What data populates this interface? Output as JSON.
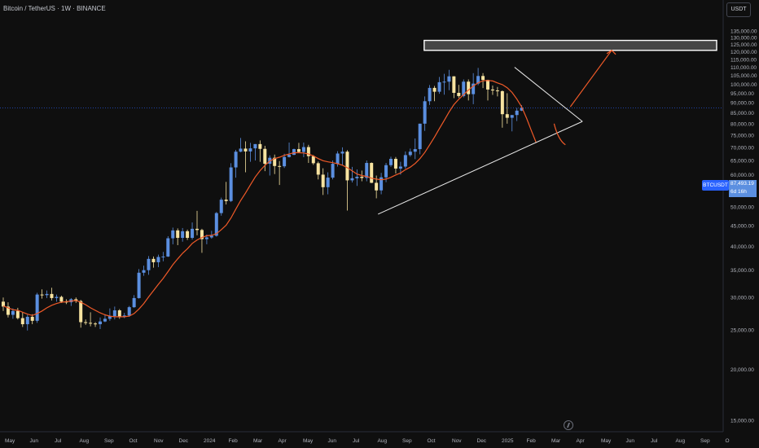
{
  "header": {
    "symbol_title": "Bitcoin / TetherUS · 1W · BINANCE"
  },
  "price_scale": {
    "currency": "USDT"
  },
  "last_price": {
    "symbol": "BTCUSDT",
    "value": "87,493.19",
    "countdown": "6d 16h"
  },
  "chart_data": {
    "type": "candlestick",
    "y_tick_labels": [
      "15,000.00",
      "20,000.00",
      "25,000.00",
      "30,000.00",
      "35,000.00",
      "40,000.00",
      "45,000.00",
      "50,000.00",
      "55,000.00",
      "60,000.00",
      "65,000.00",
      "70,000.00",
      "75,000.00",
      "80,000.00",
      "85,000.00",
      "90,000.00",
      "95,000.00",
      "100,000.00",
      "105,000.00",
      "110,000.00",
      "115,000.00",
      "120,000.00",
      "125,000.00",
      "130,000.00",
      "135,000.00"
    ],
    "y_ticks": [
      15000,
      20000,
      25000,
      30000,
      35000,
      40000,
      45000,
      50000,
      55000,
      60000,
      65000,
      70000,
      75000,
      80000,
      85000,
      90000,
      95000,
      100000,
      105000,
      110000,
      115000,
      120000,
      125000,
      130000,
      135000
    ],
    "x_tick_labels": [
      "May",
      "Jun",
      "Jul",
      "Aug",
      "Sep",
      "Oct",
      "Nov",
      "Dec",
      "2024",
      "Feb",
      "Mar",
      "Apr",
      "May",
      "Jun",
      "Jul",
      "Aug",
      "Sep",
      "Oct",
      "Nov",
      "Dec",
      "2025",
      "Feb",
      "Mar",
      "Apr",
      "May",
      "Jun",
      "Jul",
      "Aug",
      "Sep",
      "O"
    ],
    "up_color": "#5b8fe0",
    "down_color": "#f7e3a0",
    "ma_color": "#f05a28",
    "annotation_color": "#e8e8e8",
    "candles": [
      {
        "o": 29300,
        "h": 30000,
        "l": 27800,
        "c": 28500
      },
      {
        "o": 28500,
        "h": 29200,
        "l": 26800,
        "c": 27200
      },
      {
        "o": 27200,
        "h": 28200,
        "l": 26600,
        "c": 27800
      },
      {
        "o": 27800,
        "h": 28300,
        "l": 26500,
        "c": 26700
      },
      {
        "o": 26700,
        "h": 27600,
        "l": 25400,
        "c": 25800
      },
      {
        "o": 25800,
        "h": 27200,
        "l": 24900,
        "c": 26900
      },
      {
        "o": 26900,
        "h": 27300,
        "l": 25800,
        "c": 26300
      },
      {
        "o": 26300,
        "h": 30800,
        "l": 26000,
        "c": 30500
      },
      {
        "o": 30500,
        "h": 31400,
        "l": 29800,
        "c": 30400
      },
      {
        "o": 30400,
        "h": 31200,
        "l": 29900,
        "c": 30600
      },
      {
        "o": 30600,
        "h": 31700,
        "l": 29500,
        "c": 29900
      },
      {
        "o": 29900,
        "h": 30500,
        "l": 29300,
        "c": 30100
      },
      {
        "o": 30100,
        "h": 30300,
        "l": 29100,
        "c": 29300
      },
      {
        "o": 29300,
        "h": 29700,
        "l": 28900,
        "c": 29200
      },
      {
        "o": 29200,
        "h": 29900,
        "l": 28600,
        "c": 29700
      },
      {
        "o": 29700,
        "h": 30000,
        "l": 29100,
        "c": 29400
      },
      {
        "o": 29400,
        "h": 29600,
        "l": 25300,
        "c": 26100
      },
      {
        "o": 26100,
        "h": 26500,
        "l": 25700,
        "c": 26000
      },
      {
        "o": 26000,
        "h": 27600,
        "l": 25500,
        "c": 25900
      },
      {
        "o": 25900,
        "h": 26100,
        "l": 25400,
        "c": 25800
      },
      {
        "o": 25800,
        "h": 26800,
        "l": 25100,
        "c": 26200
      },
      {
        "o": 26200,
        "h": 27300,
        "l": 26100,
        "c": 26600
      },
      {
        "o": 26600,
        "h": 28200,
        "l": 26300,
        "c": 27000
      },
      {
        "o": 27000,
        "h": 28500,
        "l": 26500,
        "c": 27900
      },
      {
        "o": 27900,
        "h": 28100,
        "l": 26600,
        "c": 26900
      },
      {
        "o": 26900,
        "h": 27500,
        "l": 26700,
        "c": 27100
      },
      {
        "o": 27100,
        "h": 28600,
        "l": 26900,
        "c": 28400
      },
      {
        "o": 28400,
        "h": 30400,
        "l": 28300,
        "c": 29900
      },
      {
        "o": 29900,
        "h": 35200,
        "l": 29800,
        "c": 34500
      },
      {
        "o": 34500,
        "h": 35900,
        "l": 33900,
        "c": 35000
      },
      {
        "o": 35000,
        "h": 37900,
        "l": 34100,
        "c": 37300
      },
      {
        "o": 37300,
        "h": 37800,
        "l": 35500,
        "c": 36600
      },
      {
        "o": 36600,
        "h": 38200,
        "l": 35600,
        "c": 37700
      },
      {
        "o": 37700,
        "h": 38800,
        "l": 36800,
        "c": 37800
      },
      {
        "o": 37800,
        "h": 42400,
        "l": 37700,
        "c": 41900
      },
      {
        "o": 41900,
        "h": 44500,
        "l": 40500,
        "c": 43800
      },
      {
        "o": 43800,
        "h": 44300,
        "l": 40300,
        "c": 42000
      },
      {
        "o": 42000,
        "h": 44400,
        "l": 41100,
        "c": 43600
      },
      {
        "o": 43600,
        "h": 44000,
        "l": 41500,
        "c": 42000
      },
      {
        "o": 42000,
        "h": 45800,
        "l": 41600,
        "c": 44200
      },
      {
        "o": 44200,
        "h": 48900,
        "l": 42600,
        "c": 43900
      },
      {
        "o": 43900,
        "h": 44200,
        "l": 38600,
        "c": 41700
      },
      {
        "o": 41700,
        "h": 42800,
        "l": 40500,
        "c": 42100
      },
      {
        "o": 42100,
        "h": 43700,
        "l": 41800,
        "c": 42500
      },
      {
        "o": 42500,
        "h": 48600,
        "l": 42300,
        "c": 48300
      },
      {
        "o": 48300,
        "h": 52700,
        "l": 47600,
        "c": 52100
      },
      {
        "o": 52100,
        "h": 57600,
        "l": 50700,
        "c": 51700
      },
      {
        "o": 51700,
        "h": 64000,
        "l": 51400,
        "c": 62500
      },
      {
        "o": 62500,
        "h": 69000,
        "l": 59000,
        "c": 68300
      },
      {
        "o": 68300,
        "h": 73800,
        "l": 68100,
        "c": 69500
      },
      {
        "o": 69500,
        "h": 72400,
        "l": 60800,
        "c": 68400
      },
      {
        "o": 68400,
        "h": 71800,
        "l": 64500,
        "c": 69600
      },
      {
        "o": 69600,
        "h": 71300,
        "l": 65000,
        "c": 71300
      },
      {
        "o": 71300,
        "h": 72800,
        "l": 64500,
        "c": 69400
      },
      {
        "o": 69400,
        "h": 70600,
        "l": 61200,
        "c": 63800
      },
      {
        "o": 63800,
        "h": 66900,
        "l": 59700,
        "c": 66000
      },
      {
        "o": 66000,
        "h": 67200,
        "l": 60200,
        "c": 63000
      },
      {
        "o": 63000,
        "h": 64800,
        "l": 56600,
        "c": 62900
      },
      {
        "o": 62900,
        "h": 67500,
        "l": 62300,
        "c": 66300
      },
      {
        "o": 66300,
        "h": 71900,
        "l": 66100,
        "c": 67100
      },
      {
        "o": 67100,
        "h": 69500,
        "l": 67000,
        "c": 69300
      },
      {
        "o": 69300,
        "h": 71800,
        "l": 68000,
        "c": 68200
      },
      {
        "o": 68200,
        "h": 71900,
        "l": 66200,
        "c": 70100
      },
      {
        "o": 70100,
        "h": 71000,
        "l": 64100,
        "c": 66600
      },
      {
        "o": 66600,
        "h": 67000,
        "l": 63400,
        "c": 64000
      },
      {
        "o": 64000,
        "h": 64600,
        "l": 58400,
        "c": 60000
      },
      {
        "o": 60000,
        "h": 62200,
        "l": 53500,
        "c": 55900
      },
      {
        "o": 55900,
        "h": 60800,
        "l": 53700,
        "c": 59000
      },
      {
        "o": 59000,
        "h": 65000,
        "l": 58400,
        "c": 63800
      },
      {
        "o": 63800,
        "h": 68500,
        "l": 62800,
        "c": 67600
      },
      {
        "o": 67600,
        "h": 70000,
        "l": 63300,
        "c": 68300
      },
      {
        "o": 68300,
        "h": 68900,
        "l": 49000,
        "c": 58100
      },
      {
        "o": 58100,
        "h": 62700,
        "l": 57400,
        "c": 58800
      },
      {
        "o": 58800,
        "h": 61800,
        "l": 56300,
        "c": 59300
      },
      {
        "o": 59300,
        "h": 61400,
        "l": 57800,
        "c": 58900
      },
      {
        "o": 58900,
        "h": 65000,
        "l": 57800,
        "c": 64100
      },
      {
        "o": 64100,
        "h": 64300,
        "l": 57200,
        "c": 57300
      },
      {
        "o": 57300,
        "h": 59700,
        "l": 52500,
        "c": 54900
      },
      {
        "o": 54900,
        "h": 60600,
        "l": 53700,
        "c": 59100
      },
      {
        "o": 59100,
        "h": 64100,
        "l": 57500,
        "c": 63300
      },
      {
        "o": 63300,
        "h": 66400,
        "l": 62700,
        "c": 65600
      },
      {
        "o": 65600,
        "h": 66300,
        "l": 60400,
        "c": 62100
      },
      {
        "o": 62100,
        "h": 64500,
        "l": 60000,
        "c": 62800
      },
      {
        "o": 62800,
        "h": 68400,
        "l": 62100,
        "c": 67000
      },
      {
        "o": 67000,
        "h": 69500,
        "l": 66400,
        "c": 68300
      },
      {
        "o": 68300,
        "h": 73600,
        "l": 65500,
        "c": 69300
      },
      {
        "o": 69300,
        "h": 80000,
        "l": 67300,
        "c": 80000
      },
      {
        "o": 80000,
        "h": 93300,
        "l": 76800,
        "c": 90800
      },
      {
        "o": 90800,
        "h": 99500,
        "l": 88900,
        "c": 97900
      },
      {
        "o": 97900,
        "h": 99000,
        "l": 90800,
        "c": 95800
      },
      {
        "o": 95800,
        "h": 104100,
        "l": 94700,
        "c": 101100
      },
      {
        "o": 101100,
        "h": 106000,
        "l": 94200,
        "c": 101400
      },
      {
        "o": 101400,
        "h": 108400,
        "l": 96600,
        "c": 104500
      },
      {
        "o": 104500,
        "h": 104600,
        "l": 92400,
        "c": 95200
      },
      {
        "o": 95200,
        "h": 99600,
        "l": 92500,
        "c": 93500
      },
      {
        "o": 93500,
        "h": 102700,
        "l": 92800,
        "c": 101400
      },
      {
        "o": 101400,
        "h": 102700,
        "l": 91200,
        "c": 94500
      },
      {
        "o": 94500,
        "h": 106400,
        "l": 89300,
        "c": 100300
      },
      {
        "o": 100300,
        "h": 109600,
        "l": 99400,
        "c": 104700
      },
      {
        "o": 104700,
        "h": 106400,
        "l": 97800,
        "c": 102400
      },
      {
        "o": 102400,
        "h": 102500,
        "l": 91200,
        "c": 97000
      },
      {
        "o": 97000,
        "h": 99200,
        "l": 94100,
        "c": 96500
      },
      {
        "o": 96500,
        "h": 98400,
        "l": 93300,
        "c": 96100
      },
      {
        "o": 96100,
        "h": 96500,
        "l": 78200,
        "c": 84400
      },
      {
        "o": 84400,
        "h": 95000,
        "l": 80000,
        "c": 82700
      },
      {
        "o": 82700,
        "h": 84000,
        "l": 76600,
        "c": 84000
      },
      {
        "o": 84000,
        "h": 87400,
        "l": 81200,
        "c": 86100
      },
      {
        "o": 86100,
        "h": 88800,
        "l": 85900,
        "c": 87493
      }
    ],
    "ma_values": [
      28600,
      28300,
      28000,
      27900,
      27600,
      27300,
      27100,
      27400,
      27800,
      28300,
      28700,
      29000,
      29200,
      29300,
      29400,
      29500,
      29200,
      28800,
      28300,
      27900,
      27500,
      27200,
      27000,
      26900,
      26900,
      26900,
      27000,
      27400,
      28100,
      29000,
      30100,
      31200,
      32300,
      33400,
      34700,
      36100,
      37300,
      38500,
      39500,
      40700,
      41500,
      42100,
      42500,
      42600,
      43000,
      44000,
      45100,
      47000,
      49400,
      51900,
      54100,
      56600,
      59200,
      61400,
      63200,
      64800,
      65700,
      66200,
      66900,
      67400,
      67900,
      67900,
      67800,
      67400,
      66700,
      65700,
      64900,
      64500,
      64200,
      63800,
      63300,
      62400,
      61300,
      60200,
      59700,
      59400,
      58800,
      58500,
      58300,
      58500,
      59100,
      59900,
      60600,
      61700,
      62600,
      63900,
      65700,
      68000,
      71000,
      74200,
      77800,
      81500,
      85400,
      89100,
      91800,
      94300,
      96700,
      98900,
      100800,
      101900,
      102100,
      101800,
      100700,
      99700,
      98000,
      95400,
      91900,
      87900,
      82500,
      76800,
      71800
    ]
  },
  "annotations": {
    "target_zone": {
      "top": 128000,
      "bottom": 121000,
      "x_start_index": 103
    },
    "triangle_upper": {
      "from": {
        "i": 103,
        "p": 110000
      },
      "to": {
        "i": 117,
        "p": 81000
      }
    },
    "triangle_lower": {
      "from": {
        "i": 76,
        "p": 48000
      },
      "to": {
        "i": 117,
        "p": 81000
      }
    },
    "arrow": {
      "from": {
        "i": 113,
        "p": 88000
      },
      "to": {
        "i": 118,
        "p": 121000
      }
    },
    "curve": {
      "from": {
        "i": 112,
        "p": 80000
      },
      "to": {
        "i": 114,
        "p": 71000
      }
    }
  },
  "icons": {
    "replay": "lightning-icon"
  }
}
